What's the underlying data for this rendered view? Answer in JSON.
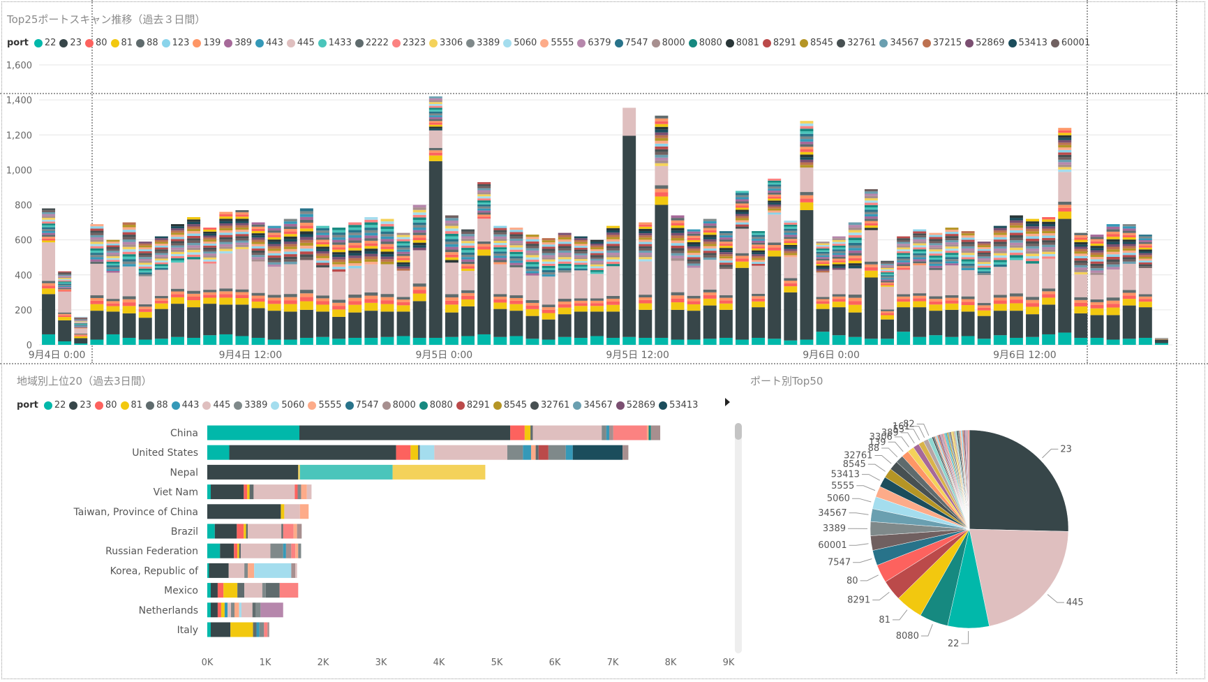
{
  "colors": {
    "22": "#01B8AA",
    "23": "#374649",
    "80": "#FD625E",
    "81": "#F2C80F",
    "88": "#5F6B6D",
    "123": "#8AD4EB",
    "139": "#FE9666",
    "389": "#A66999",
    "443": "#3599B8",
    "445": "#DFBFBF",
    "1433": "#4AC5BB",
    "2222": "#5F6B6D",
    "2323": "#FB8281",
    "3306": "#F4D25A",
    "3389": "#7F898A",
    "5060": "#A4DDEE",
    "5555": "#FDAB89",
    "6379": "#B687AC",
    "7547": "#28738A",
    "8000": "#A78F8F",
    "8080": "#168980",
    "8081": "#293537",
    "8291": "#BB4A4A",
    "8545": "#B59525",
    "32761": "#475052",
    "34567": "#6A9FB0",
    "37215": "#BD7150",
    "52869": "#7B4F71",
    "53413": "#1B4D5C",
    "60001": "#706060",
    "161": "#B6A5A5",
    "82": "#8ED6CF",
    "53": "#D9B34A"
  },
  "chart_data": [
    {
      "type": "bar",
      "orientation": "vertical",
      "stacked": true,
      "title": "Top25ポートスキャン推移（過去３日間）",
      "legend_title": "port",
      "legend_placement": "top-left",
      "series_names": [
        "22",
        "23",
        "80",
        "81",
        "88",
        "123",
        "139",
        "389",
        "443",
        "445",
        "1433",
        "2222",
        "2323",
        "3306",
        "3389",
        "5060",
        "5555",
        "6379",
        "7547",
        "8000",
        "8080",
        "8081",
        "8291",
        "8545",
        "32761",
        "34567",
        "37215",
        "52869",
        "53413",
        "60001"
      ],
      "y_ticks": [
        "0",
        "200",
        "400",
        "600",
        "800",
        "1,000",
        "1,200",
        "1,400",
        "1,600"
      ],
      "ylim": [
        0,
        1600
      ],
      "x_tick_labels": [
        {
          "label": "9月4日 0:00",
          "index": 0
        },
        {
          "label": "9月4日 12:00",
          "index": 12
        },
        {
          "label": "9月5日 0:00",
          "index": 24
        },
        {
          "label": "9月5日 12:00",
          "index": 36
        },
        {
          "label": "9月6日 0:00",
          "index": 48
        },
        {
          "label": "9月6日 12:00",
          "index": 60
        }
      ],
      "totals": [
        780,
        420,
        160,
        690,
        600,
        700,
        590,
        620,
        690,
        730,
        670,
        760,
        770,
        700,
        680,
        720,
        780,
        680,
        670,
        700,
        730,
        720,
        640,
        800,
        1420,
        740,
        660,
        930,
        680,
        670,
        630,
        610,
        640,
        620,
        600,
        680,
        1260,
        700,
        1310,
        740,
        660,
        720,
        650,
        880,
        650,
        950,
        710,
        1280,
        590,
        620,
        700,
        890,
        480,
        620,
        660,
        640,
        670,
        650,
        590,
        680,
        740,
        720,
        730,
        1240,
        640,
        630,
        690,
        690,
        630,
        40
      ],
      "port22": [
        60,
        20,
        8,
        30,
        60,
        40,
        30,
        35,
        45,
        40,
        55,
        60,
        50,
        40,
        30,
        30,
        40,
        45,
        35,
        40,
        40,
        45,
        50,
        40,
        40,
        45,
        50,
        60,
        45,
        50,
        35,
        30,
        45,
        40,
        50,
        40,
        45,
        40,
        40,
        30,
        30,
        35,
        40,
        30,
        40,
        35,
        25,
        30,
        75,
        55,
        45,
        35,
        35,
        75,
        45,
        55,
        45,
        50,
        35,
        55,
        40,
        45,
        60,
        70,
        40,
        40,
        30,
        35,
        40,
        10
      ],
      "port23": [
        230,
        120,
        30,
        165,
        130,
        140,
        125,
        170,
        190,
        175,
        180,
        170,
        180,
        170,
        165,
        160,
        160,
        145,
        125,
        145,
        155,
        145,
        140,
        210,
        1010,
        140,
        170,
        450,
        160,
        145,
        130,
        115,
        130,
        150,
        140,
        150,
        1150,
        160,
        760,
        170,
        165,
        190,
        160,
        410,
        175,
        470,
        275,
        740,
        130,
        160,
        140,
        350,
        110,
        140,
        170,
        140,
        155,
        140,
        130,
        140,
        155,
        130,
        170,
        650,
        140,
        130,
        140,
        190,
        175,
        20
      ],
      "port445": [
        220,
        120,
        30,
        180,
        150,
        170,
        160,
        150,
        150,
        180,
        150,
        200,
        230,
        180,
        160,
        170,
        170,
        160,
        160,
        150,
        160,
        170,
        150,
        190,
        100,
        180,
        110,
        130,
        170,
        160,
        140,
        160,
        150,
        160,
        140,
        170,
        160,
        190,
        110,
        180,
        160,
        170,
        150,
        140,
        160,
        160,
        120,
        140,
        140,
        140,
        150,
        180,
        130,
        140,
        160,
        150,
        170,
        150,
        160,
        160,
        190,
        190,
        170,
        170,
        130,
        140,
        160,
        150,
        150,
        0
      ],
      "breakdown_note": "",
      "color_order": [
        "22",
        "23",
        "81",
        "80",
        "139",
        "88",
        "445",
        "389",
        "443",
        "3389",
        "7547",
        "1433",
        "8080",
        "2323",
        "5060",
        "3306",
        "8000",
        "6379",
        "34567",
        "60001",
        "32761",
        "8291"
      ]
    },
    {
      "type": "bar",
      "orientation": "horizontal",
      "stacked": true,
      "title": "地域別上位20（過去3日間）",
      "legend_title": "port",
      "legend_placement": "top-left",
      "series_names": [
        "22",
        "23",
        "80",
        "81",
        "88",
        "443",
        "445",
        "3389",
        "5060",
        "5555",
        "7547",
        "8000",
        "8080",
        "8291",
        "8545",
        "32761",
        "34567",
        "52869",
        "53413"
      ],
      "categories": [
        "China",
        "United States",
        "Nepal",
        "Viet Nam",
        "Taiwan, Province of China",
        "Brazil",
        "Russian Federation",
        "Korea, Republic of",
        "Mexico",
        "Netherlands",
        "Italy"
      ],
      "x_ticks": [
        "0K",
        "1K",
        "2K",
        "3K",
        "4K",
        "5K",
        "6K",
        "7K",
        "8K",
        "9K"
      ],
      "xlim": [
        0,
        9000
      ],
      "segments": [
        [
          [
            "22",
            1590
          ],
          [
            "23",
            3640
          ],
          [
            "80",
            250
          ],
          [
            "81",
            100
          ],
          [
            "88",
            40
          ],
          [
            "445",
            1190
          ],
          [
            "3389",
            80
          ],
          [
            "443",
            50
          ],
          [
            "8000",
            70
          ],
          [
            "2323",
            580
          ],
          [
            "5555",
            30
          ],
          [
            "8080",
            40
          ],
          [
            "8000",
            160
          ]
        ],
        [
          [
            "22",
            380
          ],
          [
            "23",
            2880
          ],
          [
            "80",
            250
          ],
          [
            "81",
            130
          ],
          [
            "88",
            30
          ],
          [
            "5060",
            250
          ],
          [
            "445",
            1260
          ],
          [
            "3389",
            270
          ],
          [
            "443",
            140
          ],
          [
            "5555",
            80
          ],
          [
            "88",
            50
          ],
          [
            "8291",
            170
          ],
          [
            "3389",
            300
          ],
          [
            "443",
            120
          ],
          [
            "53413",
            860
          ],
          [
            "8000",
            100
          ]
        ],
        [
          [
            "22",
            0
          ],
          [
            "23",
            1570
          ],
          [
            "3306",
            30
          ],
          [
            "1433",
            1600
          ],
          [
            "3306",
            1600
          ]
        ],
        [
          [
            "22",
            60
          ],
          [
            "23",
            570
          ],
          [
            "80",
            60
          ],
          [
            "81",
            40
          ],
          [
            "88",
            70
          ],
          [
            "445",
            710
          ],
          [
            "80",
            50
          ],
          [
            "3389",
            60
          ],
          [
            "5555",
            100
          ],
          [
            "445",
            80
          ]
        ],
        [
          [
            "23",
            1270
          ],
          [
            "81",
            60
          ],
          [
            "445",
            270
          ],
          [
            "5555",
            150
          ]
        ],
        [
          [
            "22",
            130
          ],
          [
            "23",
            380
          ],
          [
            "80",
            120
          ],
          [
            "81",
            40
          ],
          [
            "88",
            30
          ],
          [
            "445",
            580
          ],
          [
            "88",
            30
          ],
          [
            "2323",
            180
          ],
          [
            "5555",
            60
          ],
          [
            "8000",
            80
          ]
        ],
        [
          [
            "22",
            220
          ],
          [
            "23",
            240
          ],
          [
            "80",
            60
          ],
          [
            "81",
            30
          ],
          [
            "88",
            30
          ],
          [
            "445",
            510
          ],
          [
            "3389",
            220
          ],
          [
            "443",
            50
          ],
          [
            "8000",
            90
          ],
          [
            "2323",
            70
          ],
          [
            "5555",
            50
          ],
          [
            "3389",
            50
          ]
        ],
        [
          [
            "22",
            30
          ],
          [
            "23",
            340
          ],
          [
            "445",
            270
          ],
          [
            "3389",
            60
          ],
          [
            "5555",
            110
          ],
          [
            "5060",
            640
          ],
          [
            "8000",
            70
          ],
          [
            "445",
            30
          ]
        ],
        [
          [
            "22",
            60
          ],
          [
            "23",
            120
          ],
          [
            "80",
            100
          ],
          [
            "81",
            240
          ],
          [
            "88",
            120
          ],
          [
            "445",
            310
          ],
          [
            "3389",
            60
          ],
          [
            "88",
            240
          ],
          [
            "2323",
            320
          ]
        ],
        [
          [
            "22",
            60
          ],
          [
            "23",
            120
          ],
          [
            "80",
            60
          ],
          [
            "81",
            60
          ],
          [
            "443",
            50
          ],
          [
            "445",
            60
          ],
          [
            "3389",
            60
          ],
          [
            "5555",
            80
          ],
          [
            "5060",
            40
          ],
          [
            "445",
            190
          ],
          [
            "88",
            60
          ],
          [
            "3389",
            80
          ],
          [
            "6379",
            390
          ]
        ],
        [
          [
            "22",
            60
          ],
          [
            "23",
            340
          ],
          [
            "81",
            390
          ],
          [
            "88",
            60
          ],
          [
            "443",
            50
          ],
          [
            "3389",
            80
          ],
          [
            "2323",
            60
          ],
          [
            "8000",
            30
          ]
        ]
      ]
    },
    {
      "type": "pie",
      "title": "ポート別Top50",
      "slice_order": [
        "23",
        "445",
        "22",
        "8080",
        "81",
        "8291",
        "80",
        "7547",
        "60001",
        "3389",
        "34567",
        "5060",
        "5555",
        "53413",
        "8545",
        "32761",
        "88",
        "139",
        "3306",
        "389",
        "53",
        "161",
        "82"
      ],
      "labeled_slices": [
        {
          "name": "23",
          "value": 25.5
        },
        {
          "name": "445",
          "value": 21.5
        },
        {
          "name": "22",
          "value": 6.8
        },
        {
          "name": "8080",
          "value": 4.7
        },
        {
          "name": "81",
          "value": 4.5
        },
        {
          "name": "8291",
          "value": 3.4
        },
        {
          "name": "80",
          "value": 3.0
        },
        {
          "name": "7547",
          "value": 2.5
        },
        {
          "name": "60001",
          "value": 2.4
        },
        {
          "name": "3389",
          "value": 2.3
        },
        {
          "name": "34567",
          "value": 2.1
        },
        {
          "name": "5060",
          "value": 2.0
        },
        {
          "name": "5555",
          "value": 1.8
        },
        {
          "name": "53413",
          "value": 1.7
        },
        {
          "name": "8545",
          "value": 1.6
        },
        {
          "name": "32761",
          "value": 1.5
        },
        {
          "name": "88",
          "value": 1.3
        },
        {
          "name": "139",
          "value": 1.2
        },
        {
          "name": "3306",
          "value": 1.1
        },
        {
          "name": "389",
          "value": 1.0
        },
        {
          "name": "53",
          "value": 0.9
        },
        {
          "name": "161",
          "value": 0.8
        },
        {
          "name": "82",
          "value": 0.7
        }
      ],
      "other_slices_total": 6.2,
      "other_slices_count": 27
    }
  ]
}
